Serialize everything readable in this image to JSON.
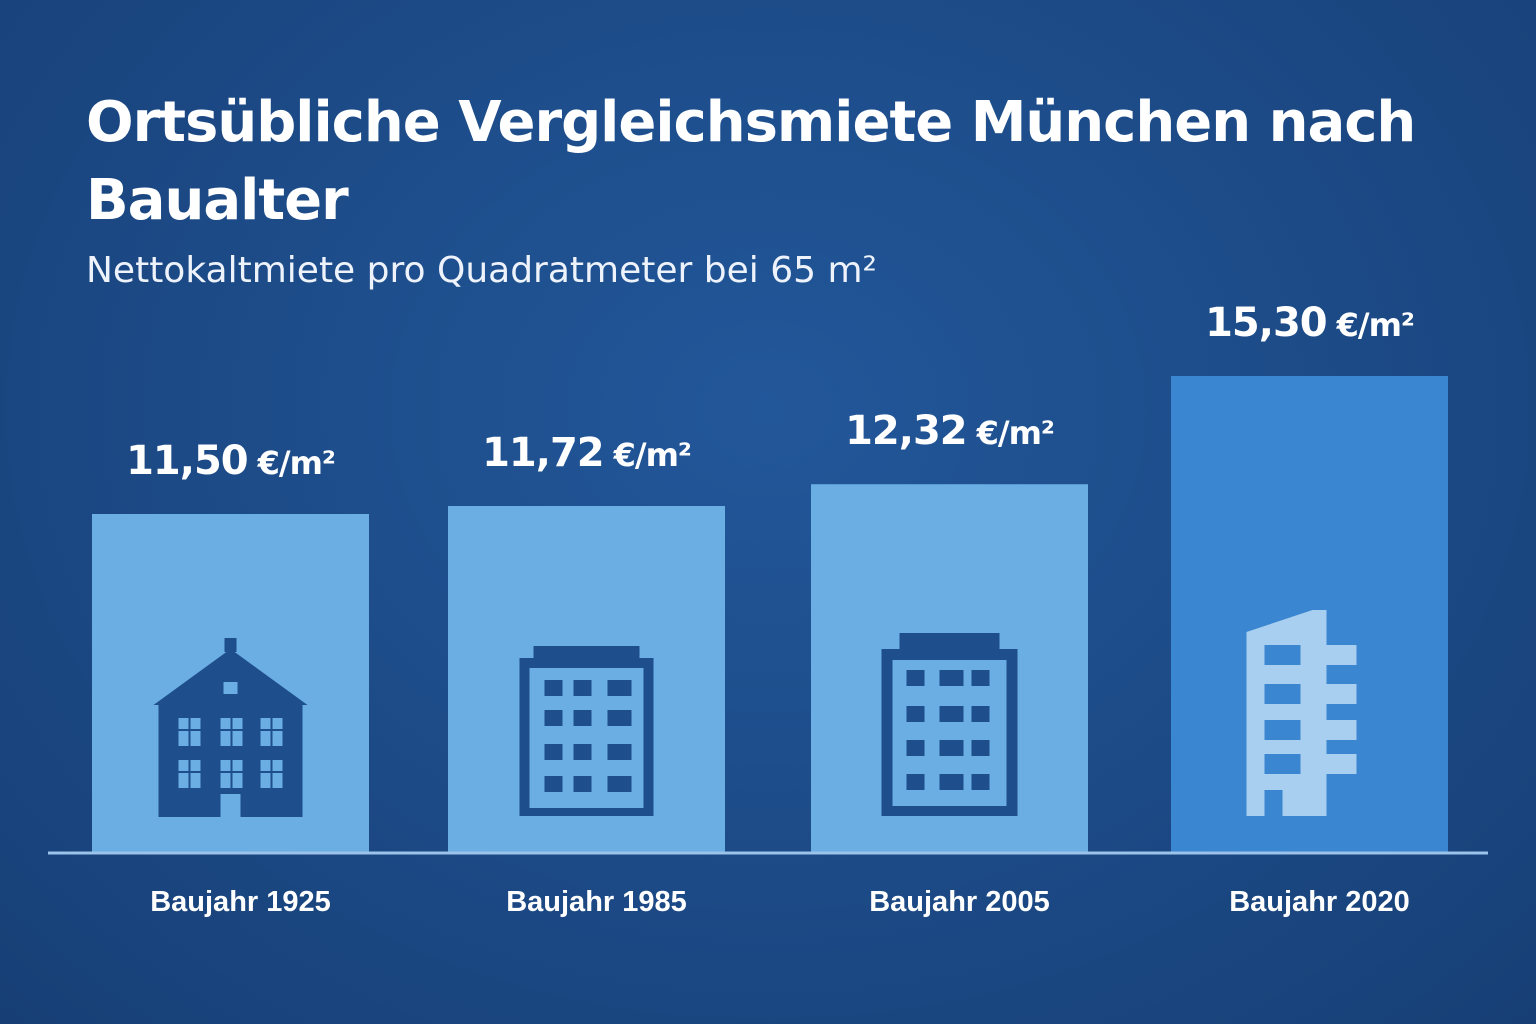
{
  "header": {
    "title": "Ortsübliche Vergleichsmiete München nach Baualter",
    "subtitle": "Nettokaltmiete pro Quadratmeter bei 65 m²"
  },
  "colors": {
    "background": "#1c4a86",
    "bar": "#6aaee3",
    "bar_highlight": "#3a86d0",
    "icon": "#1e4e8c",
    "icon_highlight": "#a9cff0",
    "baseline": "#9cc3ea"
  },
  "chart_data": {
    "type": "bar",
    "title": "Ortsübliche Vergleichsmiete München nach Baualter",
    "subtitle": "Nettokaltmiete pro Quadratmeter bei 65 m²",
    "categories": [
      "Baujahr 1925",
      "Baujahr 1985",
      "Baujahr 2005",
      "Baujahr 2020"
    ],
    "values": [
      11.5,
      11.72,
      12.32,
      15.3
    ],
    "value_labels": [
      "11,50",
      "11,72",
      "12,32",
      "15,30"
    ],
    "unit": "€/m²",
    "icons": [
      "old-house-icon",
      "apartment-block-icon",
      "apartment-building-icon",
      "modern-building-icon"
    ],
    "highlight_index": 3,
    "grid": false,
    "legend": "none"
  }
}
